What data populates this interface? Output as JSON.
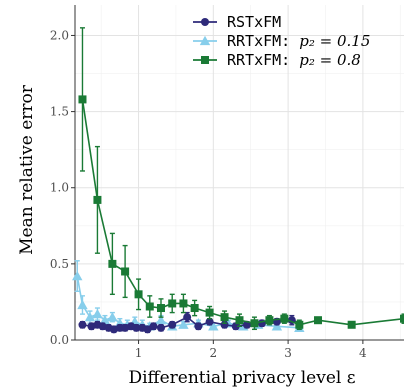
{
  "chart_data": {
    "type": "line",
    "title": "",
    "xlabel": "Differential privacy level ε",
    "ylabel": "Mean relative error",
    "xlim": [
      0.15,
      4.55
    ],
    "ylim": [
      0,
      2.2
    ],
    "x_ticks": [
      1,
      2,
      3,
      4
    ],
    "x_tick_labels": [
      "1",
      "2",
      "3",
      "4"
    ],
    "y_ticks": [
      0.0,
      0.5,
      1.0,
      1.5,
      2.0
    ],
    "y_tick_labels": [
      "0.0",
      "0.5",
      "1.0",
      "1.5",
      "2.0"
    ],
    "grid": true,
    "legend_position": "top-right",
    "series": [
      {
        "name": "RSTxFM",
        "legend_text": "RSTxFM",
        "marker": "circle",
        "color": "#2e2a7a",
        "x": [
          0.25,
          0.37,
          0.45,
          0.52,
          0.6,
          0.67,
          0.75,
          0.82,
          0.9,
          0.97,
          1.05,
          1.12,
          1.2,
          1.3,
          1.45,
          1.65,
          1.8,
          1.95,
          2.15,
          2.3,
          2.45,
          2.65,
          2.85,
          3.05
        ],
        "y": [
          0.1,
          0.09,
          0.1,
          0.09,
          0.08,
          0.07,
          0.08,
          0.08,
          0.09,
          0.08,
          0.08,
          0.07,
          0.09,
          0.08,
          0.1,
          0.15,
          0.09,
          0.12,
          0.1,
          0.09,
          0.1,
          0.11,
          0.12,
          0.13
        ],
        "error": [
          0.02,
          0.02,
          0.02,
          0.02,
          0.02,
          0.02,
          0.02,
          0.02,
          0.02,
          0.02,
          0.02,
          0.02,
          0.02,
          0.02,
          0.02,
          0.03,
          0.02,
          0.02,
          0.02,
          0.02,
          0.02,
          0.02,
          0.02,
          0.03
        ]
      },
      {
        "name": "RRTxFM: p2 = 0.15",
        "legend_text": "RRTxFM: ",
        "legend_math": "p₂ = 0.15",
        "marker": "triangle",
        "color": "#87ceeb",
        "x": [
          0.18,
          0.25,
          0.35,
          0.45,
          0.55,
          0.65,
          0.75,
          0.85,
          0.95,
          1.05,
          1.15,
          1.3,
          1.45,
          1.6,
          1.8,
          2.0,
          2.2,
          2.4,
          2.6,
          2.85,
          3.15
        ],
        "y": [
          0.42,
          0.23,
          0.15,
          0.17,
          0.13,
          0.15,
          0.11,
          0.1,
          0.12,
          0.1,
          0.09,
          0.13,
          0.09,
          0.1,
          0.11,
          0.09,
          0.11,
          0.09,
          0.1,
          0.09,
          0.08
        ],
        "error": [
          0.1,
          0.06,
          0.04,
          0.04,
          0.03,
          0.03,
          0.03,
          0.03,
          0.03,
          0.03,
          0.02,
          0.03,
          0.02,
          0.02,
          0.02,
          0.02,
          0.02,
          0.02,
          0.02,
          0.02,
          0.02
        ]
      },
      {
        "name": "RRTxFM: p2 = 0.8",
        "legend_text": "RRTxFM: ",
        "legend_math": "p₂ = 0.8",
        "marker": "square",
        "color": "#1a7a35",
        "x": [
          0.25,
          0.45,
          0.65,
          0.82,
          1.0,
          1.15,
          1.3,
          1.45,
          1.6,
          1.75,
          1.95,
          2.15,
          2.35,
          2.55,
          2.75,
          2.95,
          3.15,
          3.4,
          3.85,
          4.55
        ],
        "y": [
          1.58,
          0.92,
          0.5,
          0.45,
          0.3,
          0.22,
          0.21,
          0.24,
          0.24,
          0.21,
          0.18,
          0.15,
          0.13,
          0.11,
          0.13,
          0.14,
          0.1,
          0.13,
          0.1,
          0.14
        ],
        "error": [
          0.47,
          0.35,
          0.2,
          0.17,
          0.1,
          0.07,
          0.06,
          0.06,
          0.06,
          0.05,
          0.04,
          0.04,
          0.04,
          0.04,
          0.03,
          0.03,
          0.03,
          0.02,
          0.02,
          0.03
        ]
      }
    ]
  }
}
